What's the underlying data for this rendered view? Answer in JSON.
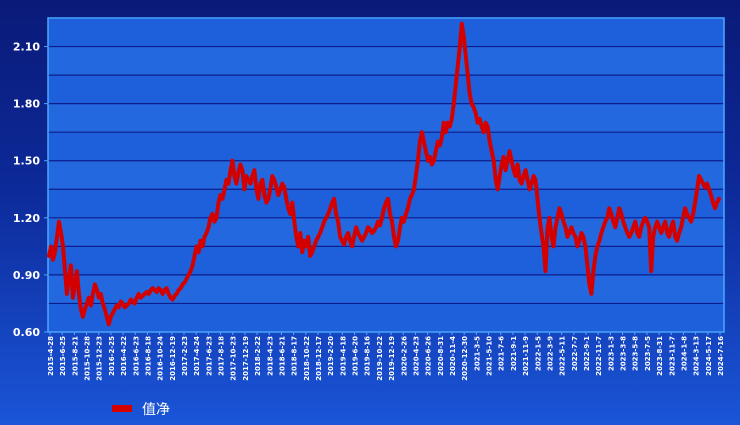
{
  "chart_data": {
    "type": "line",
    "ylim": [
      0.6,
      2.25
    ],
    "y_ticks": [
      "0.60",
      "0.90",
      "1.20",
      "1.50",
      "1.80",
      "2.10"
    ],
    "x_ticks": [
      "2015-4-28",
      "2015-6-25",
      "2015-8-21",
      "2015-10-28",
      "2015-12-23",
      "2016-2-25",
      "2016-4-22",
      "2016-6-23",
      "2016-8-18",
      "2016-10-24",
      "2016-12-19",
      "2017-2-23",
      "2017-4-24",
      "2017-6-23",
      "2017-8-18",
      "2017-10-23",
      "2017-12-19",
      "2018-2-22",
      "2018-4-23",
      "2018-6-21",
      "2018-8-17",
      "2018-10-22",
      "2018-12-17",
      "2019-2-20",
      "2019-4-18",
      "2019-6-20",
      "2019-8-16",
      "2019-10-22",
      "2019-12-19",
      "2020-2-26",
      "2020-4-23",
      "2020-6-26",
      "2020-8-31",
      "2020-11-4",
      "2020-12-30",
      "2021-3-5",
      "2021-5-10",
      "2021-7-6",
      "2021-9-1",
      "2021-11-9",
      "2022-1-5",
      "2022-3-9",
      "2022-5-11",
      "2022-7-7",
      "2022-9-1",
      "2022-11-7",
      "2023-1-3",
      "2023-3-8",
      "2023-5-8",
      "2023-7-5",
      "2023-8-31",
      "2023-11-7",
      "2024-1-8",
      "2024-3-13",
      "2024-5-17",
      "2024-7-16"
    ],
    "grid": true,
    "legend_position": "bottom-left",
    "series": [
      {
        "name": "值净",
        "color": "#d40000",
        "values": [
          1.0,
          1.05,
          0.98,
          1.02,
          1.1,
          1.18,
          1.12,
          1.05,
          0.92,
          0.8,
          0.88,
          0.95,
          0.78,
          0.85,
          0.92,
          0.8,
          0.72,
          0.68,
          0.72,
          0.75,
          0.78,
          0.74,
          0.8,
          0.85,
          0.82,
          0.78,
          0.8,
          0.75,
          0.72,
          0.68,
          0.64,
          0.68,
          0.7,
          0.72,
          0.74,
          0.73,
          0.76,
          0.75,
          0.73,
          0.74,
          0.75,
          0.77,
          0.76,
          0.75,
          0.78,
          0.8,
          0.78,
          0.79,
          0.8,
          0.81,
          0.8,
          0.82,
          0.83,
          0.82,
          0.81,
          0.83,
          0.82,
          0.8,
          0.82,
          0.83,
          0.8,
          0.78,
          0.77,
          0.79,
          0.8,
          0.82,
          0.83,
          0.85,
          0.86,
          0.88,
          0.9,
          0.92,
          0.95,
          1.0,
          1.05,
          1.02,
          1.08,
          1.05,
          1.1,
          1.12,
          1.15,
          1.2,
          1.22,
          1.18,
          1.2,
          1.28,
          1.32,
          1.3,
          1.35,
          1.4,
          1.38,
          1.45,
          1.5,
          1.42,
          1.38,
          1.44,
          1.48,
          1.45,
          1.35,
          1.42,
          1.4,
          1.38,
          1.42,
          1.45,
          1.35,
          1.3,
          1.38,
          1.4,
          1.32,
          1.28,
          1.3,
          1.35,
          1.42,
          1.4,
          1.36,
          1.32,
          1.35,
          1.38,
          1.36,
          1.3,
          1.25,
          1.22,
          1.28,
          1.18,
          1.1,
          1.05,
          1.12,
          1.02,
          1.08,
          1.05,
          1.1,
          1.0,
          1.02,
          1.05,
          1.08,
          1.1,
          1.12,
          1.15,
          1.18,
          1.2,
          1.22,
          1.25,
          1.28,
          1.3,
          1.22,
          1.18,
          1.1,
          1.08,
          1.06,
          1.1,
          1.12,
          1.08,
          1.05,
          1.1,
          1.15,
          1.12,
          1.1,
          1.08,
          1.1,
          1.12,
          1.15,
          1.14,
          1.12,
          1.13,
          1.15,
          1.18,
          1.16,
          1.2,
          1.25,
          1.28,
          1.3,
          1.22,
          1.18,
          1.1,
          1.05,
          1.08,
          1.15,
          1.2,
          1.18,
          1.22,
          1.25,
          1.3,
          1.32,
          1.35,
          1.42,
          1.5,
          1.6,
          1.65,
          1.6,
          1.55,
          1.5,
          1.52,
          1.48,
          1.5,
          1.55,
          1.6,
          1.58,
          1.62,
          1.7,
          1.65,
          1.7,
          1.68,
          1.72,
          1.8,
          1.9,
          2.0,
          2.1,
          2.22,
          2.15,
          2.05,
          1.95,
          1.85,
          1.8,
          1.78,
          1.75,
          1.7,
          1.72,
          1.68,
          1.65,
          1.7,
          1.68,
          1.6,
          1.55,
          1.5,
          1.4,
          1.35,
          1.42,
          1.48,
          1.52,
          1.45,
          1.5,
          1.55,
          1.5,
          1.45,
          1.42,
          1.48,
          1.4,
          1.38,
          1.42,
          1.45,
          1.4,
          1.35,
          1.38,
          1.42,
          1.4,
          1.3,
          1.2,
          1.12,
          1.05,
          0.92,
          1.15,
          1.2,
          1.1,
          1.05,
          1.15,
          1.2,
          1.25,
          1.22,
          1.18,
          1.15,
          1.1,
          1.12,
          1.15,
          1.12,
          1.1,
          1.05,
          1.08,
          1.12,
          1.1,
          1.05,
          0.95,
          0.85,
          0.8,
          0.92,
          1.0,
          1.05,
          1.08,
          1.12,
          1.15,
          1.18,
          1.2,
          1.25,
          1.22,
          1.18,
          1.15,
          1.2,
          1.25,
          1.22,
          1.18,
          1.15,
          1.12,
          1.1,
          1.12,
          1.15,
          1.18,
          1.12,
          1.1,
          1.15,
          1.18,
          1.2,
          1.18,
          1.15,
          0.92,
          1.1,
          1.15,
          1.18,
          1.15,
          1.12,
          1.15,
          1.18,
          1.12,
          1.1,
          1.15,
          1.18,
          1.1,
          1.08,
          1.12,
          1.15,
          1.2,
          1.25,
          1.22,
          1.2,
          1.18,
          1.22,
          1.28,
          1.35,
          1.42,
          1.4,
          1.38,
          1.36,
          1.38,
          1.35,
          1.32,
          1.28,
          1.25,
          1.28,
          1.3
        ]
      }
    ]
  }
}
